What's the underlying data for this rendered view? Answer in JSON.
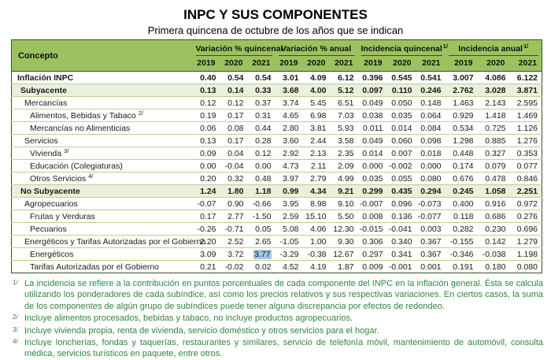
{
  "page": {
    "title": "INPC Y SUS COMPONENTES",
    "subtitle": "Primera quincena de octubre de los años que se indican"
  },
  "table": {
    "concepto_header": "Concepto",
    "groups": [
      {
        "label": "Variación % quincenal",
        "sup": ""
      },
      {
        "label": "Variación % anual",
        "sup": ""
      },
      {
        "label": "Incidencia quincenal",
        "sup": "1/"
      },
      {
        "label": "Incidencia anual",
        "sup": "1/"
      }
    ],
    "years": [
      "2019",
      "2020",
      "2021"
    ],
    "rows": [
      {
        "label": "Inflación INPC",
        "sup": "",
        "level": 0,
        "bold": true,
        "shaded": false,
        "values": [
          "0.40",
          "0.54",
          "0.54",
          "3.01",
          "4.09",
          "6.12",
          "0.396",
          "0.545",
          "0.541",
          "3.007",
          "4.086",
          "6.122"
        ]
      },
      {
        "label": "Subyacente",
        "sup": "",
        "level": 1,
        "bold": true,
        "shaded": true,
        "values": [
          "0.13",
          "0.14",
          "0.33",
          "3.68",
          "4.00",
          "5.12",
          "0.097",
          "0.110",
          "0.246",
          "2.762",
          "3.028",
          "3.871"
        ]
      },
      {
        "label": "Mercancías",
        "sup": "",
        "level": 2,
        "bold": false,
        "shaded": false,
        "values": [
          "0.12",
          "0.12",
          "0.37",
          "3.74",
          "5.45",
          "6.51",
          "0.049",
          "0.050",
          "0.148",
          "1.463",
          "2.143",
          "2.595"
        ]
      },
      {
        "label": "Alimentos, Bebidas y Tabaco",
        "sup": "2/",
        "level": 3,
        "bold": false,
        "shaded": false,
        "values": [
          "0.19",
          "0.17",
          "0.31",
          "4.65",
          "6.98",
          "7.03",
          "0.038",
          "0.035",
          "0.064",
          "0.929",
          "1.418",
          "1.469"
        ]
      },
      {
        "label": "Mercancías no Alimenticias",
        "sup": "",
        "level": 3,
        "bold": false,
        "shaded": false,
        "values": [
          "0.06",
          "0.08",
          "0.44",
          "2.80",
          "3.81",
          "5.93",
          "0.011",
          "0.014",
          "0.084",
          "0.534",
          "0.725",
          "1.126"
        ]
      },
      {
        "label": "Servicios",
        "sup": "",
        "level": 2,
        "bold": false,
        "shaded": false,
        "values": [
          "0.13",
          "0.17",
          "0.28",
          "3.60",
          "2.44",
          "3.58",
          "0.049",
          "0.060",
          "0.098",
          "1.298",
          "0.885",
          "1.276"
        ]
      },
      {
        "label": "Vivienda",
        "sup": "3/",
        "level": 3,
        "bold": false,
        "shaded": false,
        "values": [
          "0.09",
          "0.04",
          "0.12",
          "2.92",
          "2.13",
          "2.35",
          "0.014",
          "0.007",
          "0.018",
          "0.448",
          "0.327",
          "0.353"
        ]
      },
      {
        "label": "Educación (Colegiaturas)",
        "sup": "",
        "level": 3,
        "bold": false,
        "shaded": false,
        "values": [
          "0.00",
          "-0.04",
          "0.00",
          "4.73",
          "2.11",
          "2.09",
          "0.000",
          "-0.002",
          "0.000",
          "0.174",
          "0.079",
          "0.077"
        ]
      },
      {
        "label": "Otros Servicios",
        "sup": "4/",
        "level": 3,
        "bold": false,
        "shaded": false,
        "values": [
          "0.20",
          "0.32",
          "0.48",
          "3.97",
          "2.79",
          "4.99",
          "0.035",
          "0.055",
          "0.080",
          "0.676",
          "0.478",
          "0.846"
        ]
      },
      {
        "label": "No Subyacente",
        "sup": "",
        "level": 1,
        "bold": true,
        "shaded": true,
        "values": [
          "1.24",
          "1.80",
          "1.18",
          "0.99",
          "4.34",
          "9.21",
          "0.299",
          "0.435",
          "0.294",
          "0.245",
          "1.058",
          "2.251"
        ]
      },
      {
        "label": "Agropecuarios",
        "sup": "",
        "level": 2,
        "bold": false,
        "shaded": false,
        "values": [
          "-0.07",
          "0.90",
          "-0.66",
          "3.95",
          "8.98",
          "9.10",
          "-0.007",
          "0.096",
          "-0.073",
          "0.400",
          "0.916",
          "0.972"
        ]
      },
      {
        "label": "Frutas y Verduras",
        "sup": "",
        "level": 3,
        "bold": false,
        "shaded": false,
        "values": [
          "0.17",
          "2.77",
          "-1.50",
          "2.59",
          "15.10",
          "5.50",
          "0.008",
          "0.136",
          "-0.077",
          "0.118",
          "0.686",
          "0.276"
        ]
      },
      {
        "label": "Pecuarios",
        "sup": "",
        "level": 3,
        "bold": false,
        "shaded": false,
        "values": [
          "-0.26",
          "-0.71",
          "0.05",
          "5.08",
          "4.06",
          "12.30",
          "-0.015",
          "-0.041",
          "0.003",
          "0.282",
          "0.230",
          "0.696"
        ]
      },
      {
        "label": "Energéticos y Tarifas Autorizadas por el Gobierno",
        "sup": "",
        "level": 2,
        "bold": false,
        "shaded": false,
        "values": [
          "2.20",
          "2.52",
          "2.65",
          "-1.05",
          "1.00",
          "9.30",
          "0.306",
          "0.340",
          "0.367",
          "-0.155",
          "0.142",
          "1.279"
        ]
      },
      {
        "label": "Energéticos",
        "sup": "",
        "level": 3,
        "bold": false,
        "shaded": false,
        "values": [
          "3.09",
          "3.72",
          "3.77",
          "-3.29",
          "-0.38",
          "12.67",
          "0.297",
          "0.341",
          "0.367",
          "-0.346",
          "-0.038",
          "1.198"
        ]
      },
      {
        "label": "Tarifas Autorizadas por el Gobierno",
        "sup": "",
        "level": 3,
        "bold": false,
        "shaded": false,
        "values": [
          "0.21",
          "-0.02",
          "0.02",
          "4.52",
          "4.19",
          "1.87",
          "0.009",
          "-0.001",
          "0.001",
          "0.191",
          "0.180",
          "0.080"
        ]
      }
    ]
  },
  "highlight": {
    "row_index": 14,
    "col_index": 2
  },
  "footnotes": [
    {
      "marker": "1/",
      "text": "La incidencia se refiere a la contribución en puntos porcentuales de cada componente del INPC en la inflación general. Ésta se calcula utilizando los ponderadores de cada subíndice, así como los precios relativos y sus respectivas variaciones. En ciertos casos, la suma de los componentes de algún grupo de subíndices puede tener alguna discrepancia por efectos de redondeo."
    },
    {
      "marker": "2/",
      "text": "Incluye alimentos procesados, bebidas y tabaco, no incluye productos agropecuarios."
    },
    {
      "marker": "3/",
      "text": "Incluye vivienda propia, renta de vivienda, servicio doméstico y otros servicios para el hogar."
    },
    {
      "marker": "4/",
      "text": "Incluye loncherías, fondas y taquerías, restaurantes y similares, servicio de telefonía móvil, mantenimiento de automóvil, consulta médica, servicios turísticos en paquete, entre otros."
    }
  ],
  "colors": {
    "header_green": "#9CC25F",
    "stripe_green": "#E9F0DB",
    "border_dark": "#3E4D26",
    "row_line": "#B9D28E",
    "footnote_green": "#2D873C",
    "selection_blue": "#9FC5E8",
    "text_dark": "#1A1A1A"
  }
}
